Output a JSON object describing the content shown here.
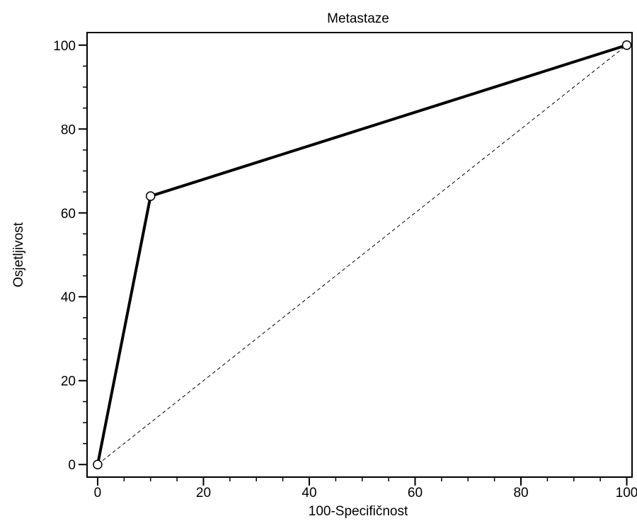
{
  "chart_data": {
    "type": "line",
    "title": "Metastaze",
    "xlabel": "100-Specifičnost",
    "ylabel": "Osjetljivost",
    "xlim": [
      -2,
      101
    ],
    "ylim": [
      -3,
      103
    ],
    "x_ticks": [
      0,
      20,
      40,
      60,
      80,
      100
    ],
    "y_ticks": [
      0,
      20,
      40,
      60,
      80,
      100
    ],
    "x_minor_step": 5,
    "y_minor_step": 5,
    "grid": false,
    "series": [
      {
        "style": "solid-thick-with-hollow-circle-markers",
        "x": [
          0,
          10,
          100
        ],
        "y": [
          0,
          64,
          100
        ]
      },
      {
        "style": "dashed-diagonal-reference",
        "x": [
          0,
          100
        ],
        "y": [
          0,
          100
        ]
      }
    ]
  }
}
